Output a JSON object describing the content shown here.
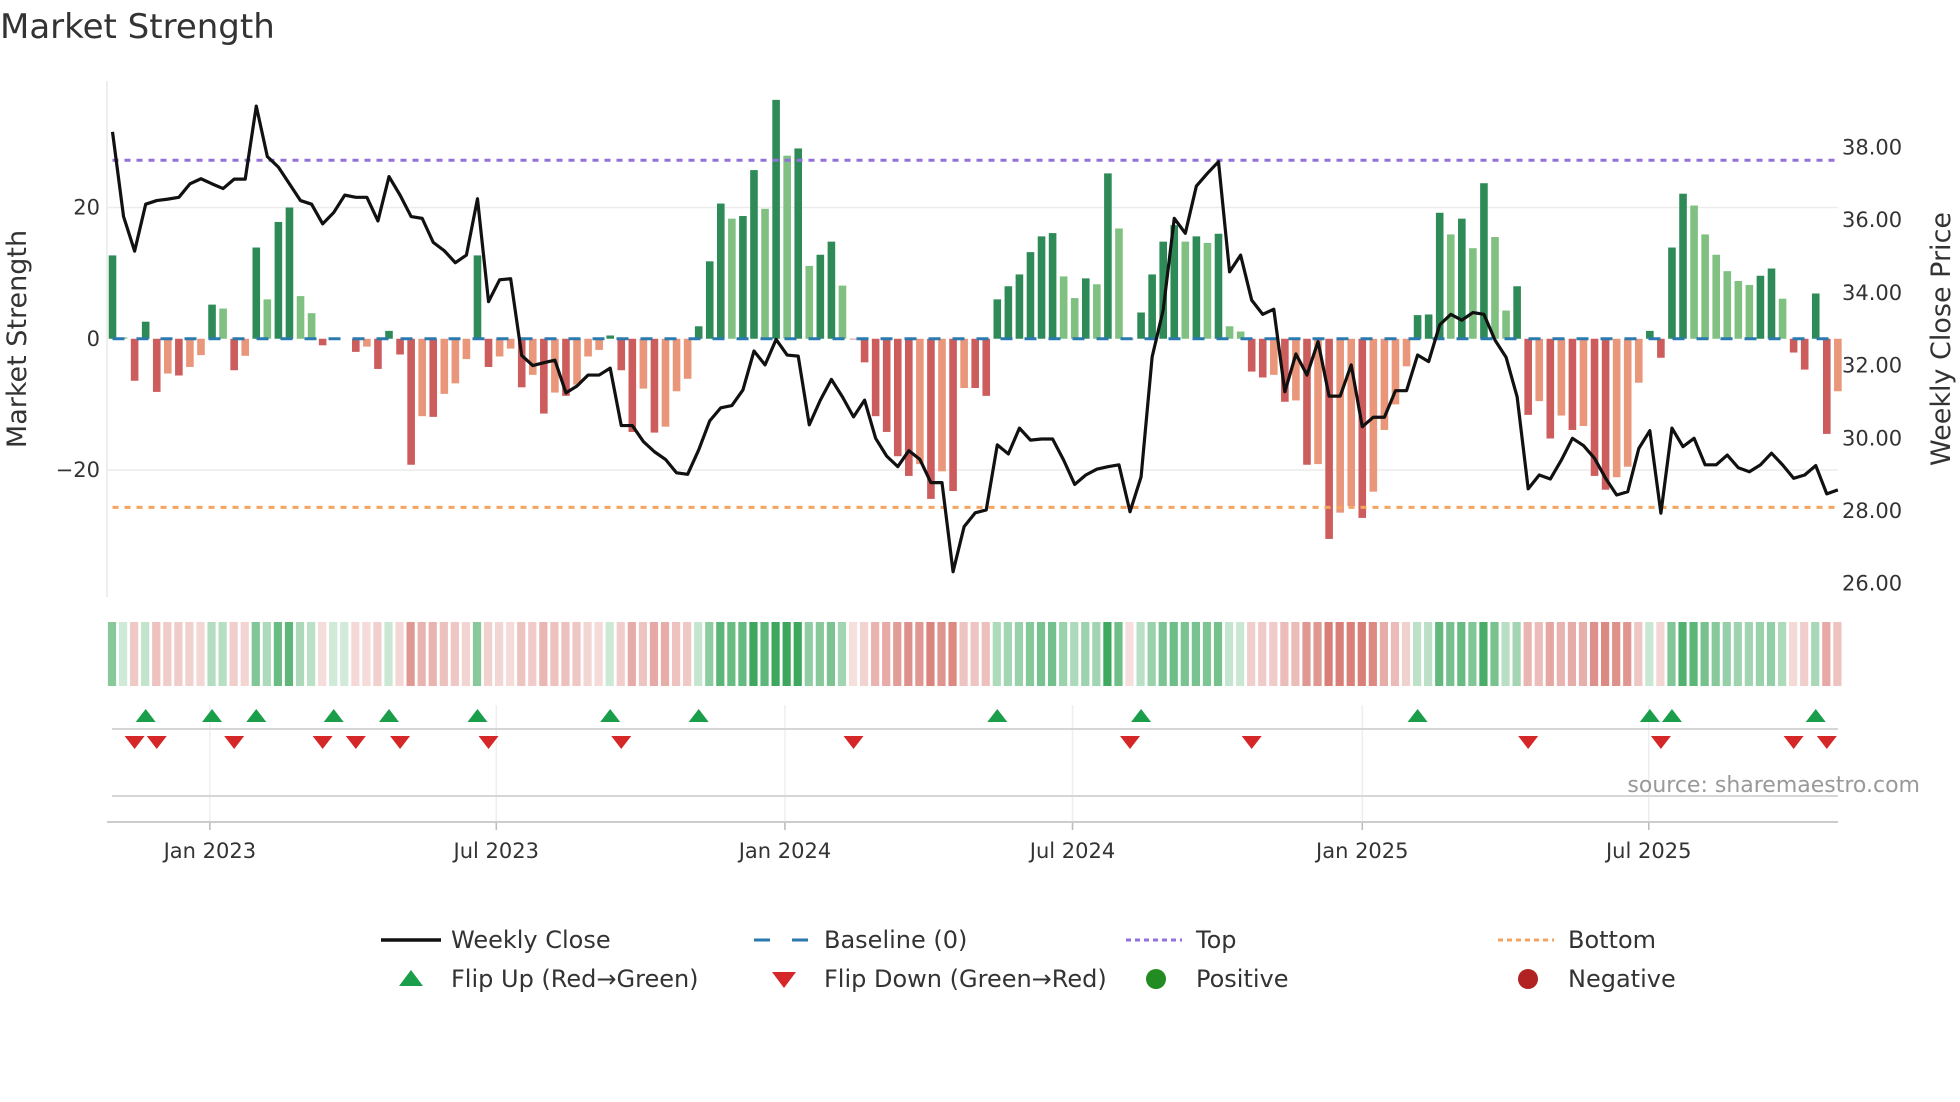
{
  "title": "Market Strength",
  "source": "source: sharemaestro.com",
  "chart_data": {
    "type": "bar",
    "title": "Market Strength",
    "ylabel": "Market Strength",
    "y2label": "Weekly Close Price",
    "ylim": [
      -39.5,
      39.3
    ],
    "y2lim": [
      25.24,
      41.6
    ],
    "yticks": [
      {
        "v": 20,
        "label": "20"
      },
      {
        "v": 0,
        "label": "0"
      },
      {
        "v": -20,
        "label": "−20"
      }
    ],
    "y2ticks": [
      {
        "v": 38,
        "label": "38.00"
      },
      {
        "v": 36,
        "label": "36.00"
      },
      {
        "v": 34,
        "label": "34.00"
      },
      {
        "v": 32,
        "label": "32.00"
      },
      {
        "v": 30,
        "label": "30.00"
      },
      {
        "v": 28,
        "label": "28.00"
      },
      {
        "v": 26,
        "label": "26.00"
      }
    ],
    "xticks": [
      {
        "week": 8.8,
        "label": "Jan 2023"
      },
      {
        "week": 34.7,
        "label": "Jul 2023"
      },
      {
        "week": 60.8,
        "label": "Jan 2024"
      },
      {
        "week": 86.8,
        "label": "Jul 2024"
      },
      {
        "week": 113.0,
        "label": "Jan 2025"
      },
      {
        "week": 138.9,
        "label": "Jul 2025"
      }
    ],
    "top_level": 27.2,
    "bottom_level": -25.7,
    "strength": [
      12.7,
      0.2,
      -6.4,
      2.6,
      -8.1,
      -5.3,
      -5.6,
      -4.3,
      -2.5,
      5.2,
      4.6,
      -4.8,
      -2.6,
      13.9,
      6.0,
      17.8,
      20.0,
      6.5,
      3.9,
      -1.0,
      0.1,
      0,
      -2.0,
      -1.2,
      -4.6,
      1.2,
      -2.4,
      -19.2,
      -11.8,
      -11.9,
      -8.4,
      -6.8,
      -3.1,
      12.7,
      -4.3,
      -2.7,
      -1.5,
      -7.4,
      -5.5,
      -11.4,
      -8.2,
      -8.7,
      -7.0,
      -2.7,
      -1.7,
      0.5,
      -4.8,
      -14.2,
      -7.6,
      -14.3,
      -13.4,
      -8.0,
      -6.1,
      1.9,
      11.8,
      20.6,
      18.3,
      18.7,
      25.7,
      19.8,
      36.4,
      27.9,
      29.0,
      11.1,
      12.8,
      14.8,
      8.1,
      -0.1,
      -3.6,
      -11.8,
      -14.2,
      -17.9,
      -20.9,
      -19.1,
      -24.4,
      -20.2,
      -23.2,
      -7.5,
      -7.5,
      -8.7,
      6.0,
      8.0,
      9.8,
      13.2,
      15.6,
      16.1,
      9.5,
      6.2,
      9.2,
      8.3,
      25.2,
      16.8,
      -0.1,
      4.0,
      9.8,
      14.8,
      17.3,
      14.8,
      15.6,
      14.6,
      16.0,
      1.9,
      1.1,
      -5.0,
      -5.9,
      -5.5,
      -9.6,
      -9.4,
      -19.2,
      -19.1,
      -30.5,
      -26.5,
      -25.5,
      -27.3,
      -23.3,
      -13.9,
      -10.0,
      -4.2,
      3.6,
      3.7,
      19.2,
      15.9,
      18.3,
      13.8,
      23.7,
      15.5,
      4.3,
      8.0,
      -11.6,
      -9.5,
      -15.2,
      -11.7,
      -13.9,
      -13.3,
      -20.9,
      -23.0,
      -21.1,
      -19.5,
      -6.7,
      1.2,
      -2.9,
      13.9,
      22.1,
      20.3,
      15.9,
      12.8,
      10.3,
      8.8,
      8.2,
      9.6,
      10.7,
      6.1,
      -2.1,
      -4.7,
      6.9,
      -14.5,
      -8.0
    ],
    "close": [
      38.43,
      36.1,
      35.15,
      36.44,
      36.54,
      36.58,
      36.63,
      37.0,
      37.14,
      37.0,
      36.87,
      37.13,
      37.13,
      39.14,
      37.75,
      37.46,
      37.0,
      36.54,
      36.44,
      35.9,
      36.21,
      36.69,
      36.63,
      36.63,
      35.98,
      37.2,
      36.69,
      36.1,
      36.05,
      35.39,
      35.16,
      34.83,
      35.04,
      36.59,
      33.76,
      34.36,
      34.39,
      32.28,
      32.0,
      32.08,
      32.15,
      31.25,
      31.44,
      31.74,
      31.74,
      31.93,
      30.35,
      30.35,
      29.91,
      29.63,
      29.42,
      29.05,
      29.01,
      29.68,
      30.48,
      30.84,
      30.9,
      31.33,
      32.4,
      32.02,
      32.72,
      32.29,
      32.26,
      30.37,
      31.05,
      31.62,
      31.14,
      30.59,
      31.05,
      30.0,
      29.51,
      29.22,
      29.66,
      29.42,
      28.78,
      28.78,
      26.33,
      27.57,
      27.95,
      28.03,
      29.82,
      29.57,
      30.28,
      29.95,
      29.98,
      29.98,
      29.4,
      28.73,
      28.99,
      29.15,
      29.22,
      29.27,
      27.98,
      28.94,
      32.24,
      33.53,
      36.05,
      35.64,
      36.94,
      37.29,
      37.61,
      34.58,
      35.04,
      33.8,
      33.41,
      33.55,
      31.28,
      32.32,
      31.74,
      32.66,
      31.16,
      31.16,
      32.02,
      30.32,
      30.58,
      30.58,
      31.31,
      31.31,
      32.29,
      32.11,
      33.12,
      33.41,
      33.25,
      33.46,
      33.41,
      32.7,
      32.23,
      31.14,
      28.61,
      28.99,
      28.88,
      29.4,
      30.0,
      29.8,
      29.45,
      28.9,
      28.44,
      28.53,
      29.72,
      30.21,
      27.94,
      30.28,
      29.77,
      30.0,
      29.27,
      29.27,
      29.54,
      29.19,
      29.08,
      29.27,
      29.59,
      29.27,
      28.9,
      28.99,
      29.25,
      28.47,
      28.58
    ],
    "flips_up": [
      3,
      9,
      13,
      20,
      25,
      33,
      45,
      53,
      80,
      93,
      118,
      139,
      141,
      154
    ],
    "flips_down": [
      2,
      4,
      11,
      19,
      22,
      26,
      34,
      46,
      67,
      92,
      103,
      128,
      140,
      152,
      155
    ],
    "colors": {
      "up_strong": "#2e8b57",
      "up_weak": "#80c080",
      "down_strong": "#cd5c5c",
      "down_weak": "#e9967a",
      "close": "#111111",
      "baseline": "#2a7ab0",
      "top": "#9370db",
      "bottom": "#f4a460",
      "flip_up": "#1a9e4a",
      "flip_down": "#d62728",
      "positive": "#228b22",
      "negative": "#b22222"
    },
    "legend": [
      {
        "key": "close",
        "label": "Weekly Close",
        "kind": "line"
      },
      {
        "key": "baseline",
        "label": "Baseline (0)",
        "kind": "dash"
      },
      {
        "key": "top",
        "label": "Top",
        "kind": "dot"
      },
      {
        "key": "bottom",
        "label": "Bottom",
        "kind": "dot"
      },
      {
        "key": "flip_up",
        "label": "Flip Up (Red→Green)",
        "kind": "tri-up"
      },
      {
        "key": "flip_down",
        "label": "Flip Down (Green→Red)",
        "kind": "tri-down"
      },
      {
        "key": "positive",
        "label": "Positive",
        "kind": "circle"
      },
      {
        "key": "negative",
        "label": "Negative",
        "kind": "circle"
      }
    ]
  }
}
